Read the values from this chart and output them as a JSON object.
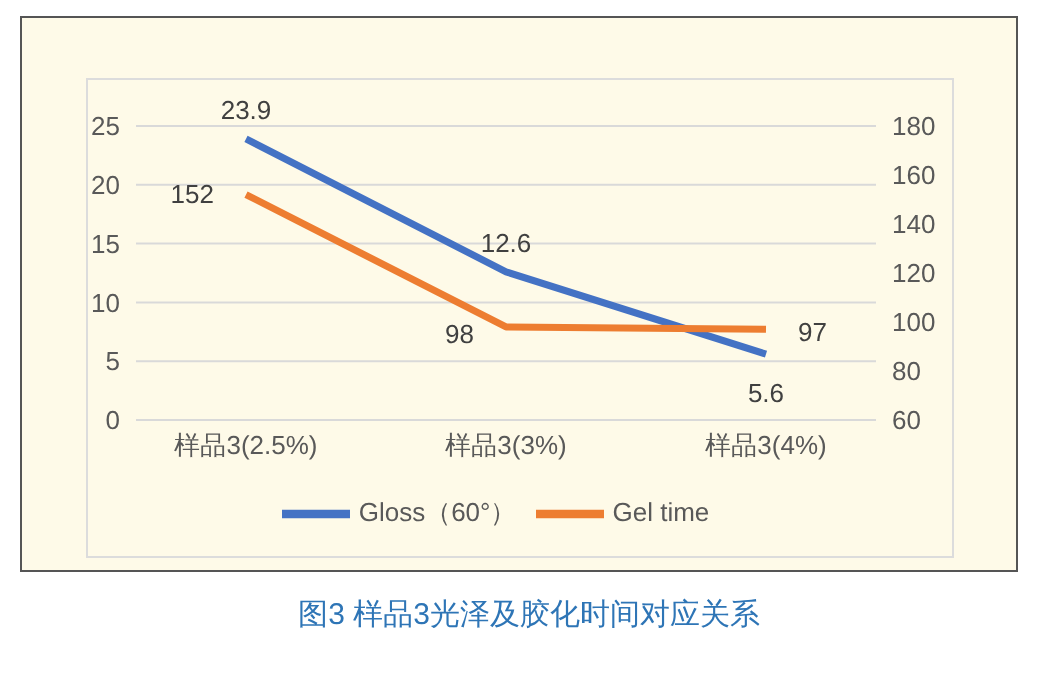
{
  "chart_data": {
    "type": "line",
    "title": "图3 样品3光泽及胶化时间对应关系",
    "categories": [
      "样品3(2.5%)",
      "样品3(3%)",
      "样品3(4%)"
    ],
    "series": [
      {
        "name": "Gloss（60°）",
        "color": "#4472c4",
        "values": [
          23.9,
          12.6,
          5.6
        ]
      },
      {
        "name": "Gel time",
        "color": "#ed7d31",
        "values": [
          152,
          98,
          97
        ],
        "axis": "y2"
      }
    ],
    "ylim": [
      0,
      25
    ],
    "yticks": [
      0,
      5,
      10,
      15,
      20,
      25
    ],
    "y2lim": [
      60,
      180
    ],
    "y2ticks": [
      60,
      80,
      100,
      120,
      140,
      160,
      180
    ],
    "grid": "y",
    "legend": "bottom",
    "data_labels": true,
    "marker": "none",
    "line_style": "solid"
  }
}
